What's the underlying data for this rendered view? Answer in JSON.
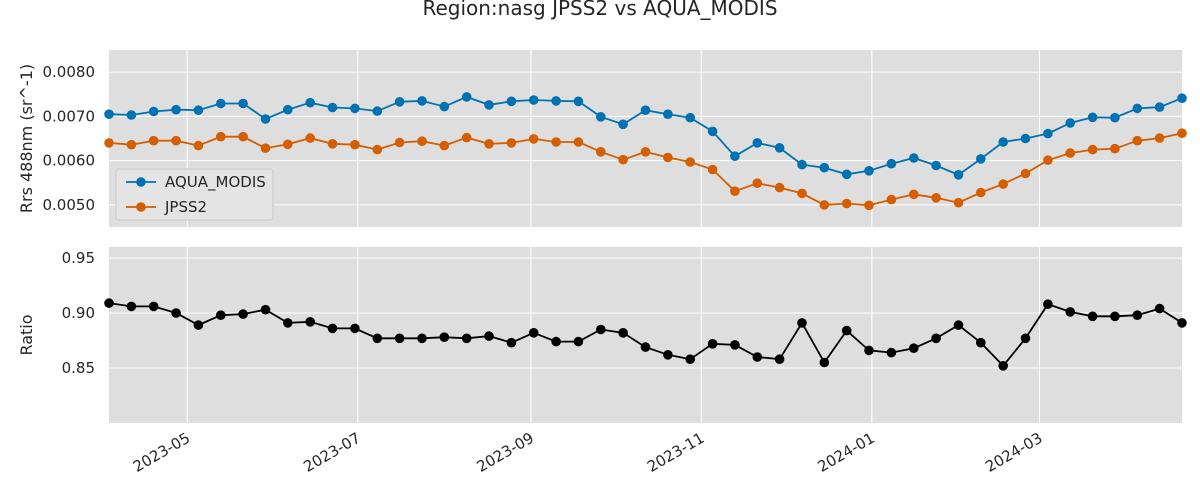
{
  "chart_data": {
    "title": "Region:nasg JPSS2 vs AQUA_MODIS",
    "type": "line",
    "x_type": "date",
    "x": [
      "2023-04-03",
      "2023-04-11",
      "2023-04-19",
      "2023-04-27",
      "2023-05-05",
      "2023-05-13",
      "2023-05-21",
      "2023-05-29",
      "2023-06-06",
      "2023-06-14",
      "2023-06-22",
      "2023-06-30",
      "2023-07-08",
      "2023-07-16",
      "2023-07-24",
      "2023-08-01",
      "2023-08-09",
      "2023-08-17",
      "2023-08-25",
      "2023-09-02",
      "2023-09-10",
      "2023-09-18",
      "2023-09-26",
      "2023-10-04",
      "2023-10-12",
      "2023-10-20",
      "2023-10-28",
      "2023-11-05",
      "2023-11-13",
      "2023-11-21",
      "2023-11-29",
      "2023-12-07",
      "2023-12-15",
      "2023-12-23",
      "2023-12-31",
      "2024-01-08",
      "2024-01-16",
      "2024-01-24",
      "2024-02-01",
      "2024-02-09",
      "2024-02-17",
      "2024-02-25",
      "2024-03-04",
      "2024-03-12",
      "2024-03-20",
      "2024-03-28",
      "2024-04-05",
      "2024-04-13",
      "2024-04-21"
    ],
    "xlim": [
      "2023-04-03",
      "2024-04-21"
    ],
    "xticks": [
      "2023-05",
      "2023-07",
      "2023-09",
      "2023-11",
      "2024-01",
      "2024-03"
    ],
    "panels": [
      {
        "ylabel": "Rrs 488nm (sr^-1)",
        "ylim": [
          0.0045,
          0.0085
        ],
        "yticks": [
          "0.0050",
          "0.0060",
          "0.0070",
          "0.0080"
        ],
        "legend_position": "center-left",
        "series": [
          {
            "name": "AQUA_MODIS",
            "color": "#0072b2",
            "values": [
              0.00705,
              0.00703,
              0.00711,
              0.00715,
              0.00714,
              0.00729,
              0.00729,
              0.00694,
              0.00715,
              0.00731,
              0.0072,
              0.00718,
              0.00712,
              0.00733,
              0.00735,
              0.00722,
              0.00744,
              0.00726,
              0.00734,
              0.00737,
              0.00735,
              0.00734,
              0.00699,
              0.00682,
              0.00714,
              0.00705,
              0.00697,
              0.00666,
              0.0061,
              0.0064,
              0.00629,
              0.00591,
              0.00584,
              0.00569,
              0.00577,
              0.00593,
              0.00606,
              0.00589,
              0.00568,
              0.00604,
              0.00642,
              0.0065,
              0.00661,
              0.00685,
              0.00698,
              0.00697,
              0.00718,
              0.00721,
              0.00741
            ]
          },
          {
            "name": "JPSS2",
            "color": "#d55e00",
            "values": [
              0.0064,
              0.00636,
              0.00645,
              0.00645,
              0.00634,
              0.00654,
              0.00654,
              0.00628,
              0.00637,
              0.00651,
              0.00638,
              0.00636,
              0.00625,
              0.00641,
              0.00644,
              0.00634,
              0.00652,
              0.00638,
              0.0064,
              0.00649,
              0.00642,
              0.00642,
              0.0062,
              0.00602,
              0.0062,
              0.00607,
              0.00597,
              0.0058,
              0.00531,
              0.00549,
              0.00539,
              0.00526,
              0.005,
              0.00503,
              0.00499,
              0.00512,
              0.00524,
              0.00516,
              0.00505,
              0.00528,
              0.00547,
              0.00571,
              0.00601,
              0.00617,
              0.00625,
              0.00627,
              0.00645,
              0.00651,
              0.00662
            ]
          }
        ]
      },
      {
        "ylabel": "Ratio",
        "ylim": [
          0.8,
          0.96
        ],
        "yticks": [
          "0.85",
          "0.90",
          "0.95"
        ],
        "series": [
          {
            "color": "#000000",
            "values": [
              0.909,
              0.906,
              0.906,
              0.9,
              0.889,
              0.898,
              0.899,
              0.903,
              0.891,
              0.892,
              0.886,
              0.886,
              0.877,
              0.877,
              0.877,
              0.878,
              0.877,
              0.879,
              0.873,
              0.882,
              0.874,
              0.874,
              0.885,
              0.882,
              0.869,
              0.862,
              0.858,
              0.872,
              0.871,
              0.86,
              0.858,
              0.891,
              0.855,
              0.884,
              0.866,
              0.864,
              0.868,
              0.877,
              0.889,
              0.873,
              0.852,
              0.877,
              0.908,
              0.901,
              0.897,
              0.897,
              0.898,
              0.904,
              0.891
            ]
          }
        ]
      }
    ]
  }
}
